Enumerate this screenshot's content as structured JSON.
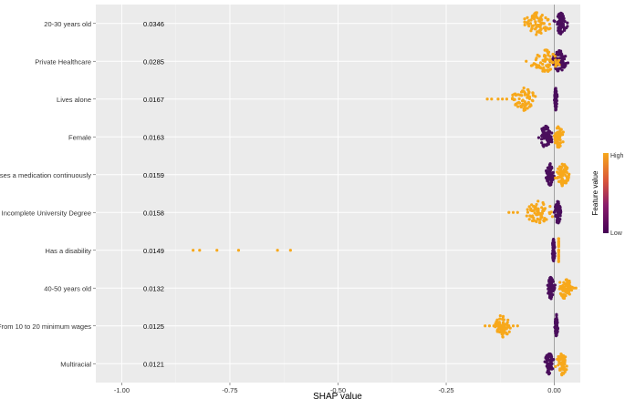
{
  "chart_data": {
    "type": "scatter",
    "subtype": "shap-beeswarm",
    "xlabel": "SHAP value",
    "xlim": [
      -1.06,
      0.06
    ],
    "xticks": [
      -1.0,
      -0.75,
      -0.5,
      -0.25,
      0.0
    ],
    "xtick_labels": [
      "-1.00",
      "-0.75",
      "-0.50",
      "-0.25",
      "0.00"
    ],
    "grid": true,
    "legend": {
      "position": "right",
      "title": "Feature value",
      "high_label": "High",
      "low_label": "Low",
      "colors": [
        "#440154",
        "#F7A81B"
      ]
    },
    "colors": {
      "high": "#F7A81B",
      "low": "#4A0E5C",
      "panel": "#EBEBEB",
      "grid": "#FFFFFF",
      "zero_line": "#8C8C8C"
    },
    "features": [
      {
        "name": "20-30 years old",
        "mean_abs_shap": "0.0346",
        "high": {
          "center": -0.04,
          "spread": 0.03,
          "outliers": [
            -0.055,
            -0.06
          ]
        },
        "low": {
          "center": 0.015,
          "spread": 0.012
        }
      },
      {
        "name": "Private Healthcare",
        "mean_abs_shap": "0.0285",
        "high": {
          "center": -0.02,
          "spread": 0.03,
          "outliers": [
            -0.065
          ]
        },
        "low": {
          "center": 0.012,
          "spread": 0.015
        }
      },
      {
        "name": "Lives alone",
        "mean_abs_shap": "0.0167",
        "high": {
          "center": -0.07,
          "spread": 0.03,
          "outliers": [
            -0.155,
            -0.145,
            -0.13,
            -0.12,
            -0.11
          ]
        },
        "low": {
          "center": 0.003,
          "spread": 0.003
        }
      },
      {
        "name": "Female",
        "mean_abs_shap": "0.0163",
        "high": {
          "center": 0.01,
          "spread": 0.01
        },
        "low": {
          "center": -0.02,
          "spread": 0.015
        }
      },
      {
        "name": "Uses a medication continuously",
        "mean_abs_shap": "0.0159",
        "high": {
          "center": 0.02,
          "spread": 0.015
        },
        "low": {
          "center": -0.01,
          "spread": 0.008
        }
      },
      {
        "name": "Incomplete University Degree",
        "mean_abs_shap": "0.0158",
        "high": {
          "center": -0.035,
          "spread": 0.03,
          "outliers": [
            -0.105,
            -0.095,
            -0.085
          ]
        },
        "low": {
          "center": 0.008,
          "spread": 0.008
        }
      },
      {
        "name": "Has a disability",
        "mean_abs_shap": "0.0149",
        "high": {
          "center": 0.01,
          "spread": 0.0,
          "outliers": [
            -0.835,
            -0.82,
            -0.78,
            -0.73,
            -0.64,
            -0.61
          ]
        },
        "low": {
          "center": -0.002,
          "spread": 0.003
        }
      },
      {
        "name": "40-50 years old",
        "mean_abs_shap": "0.0132",
        "high": {
          "center": 0.025,
          "spread": 0.015,
          "outliers": [
            0.045,
            0.05
          ]
        },
        "low": {
          "center": -0.008,
          "spread": 0.008
        }
      },
      {
        "name": "From 10 to 20 minimum wages",
        "mean_abs_shap": "0.0125",
        "high": {
          "center": -0.12,
          "spread": 0.02,
          "outliers": [
            -0.16,
            -0.15,
            -0.14,
            -0.12,
            -0.105,
            -0.095,
            -0.085
          ]
        },
        "low": {
          "center": 0.005,
          "spread": 0.003
        }
      },
      {
        "name": "Multiracial",
        "mean_abs_shap": "0.0121",
        "high": {
          "center": 0.018,
          "spread": 0.012
        },
        "low": {
          "center": -0.012,
          "spread": 0.01
        }
      }
    ]
  }
}
